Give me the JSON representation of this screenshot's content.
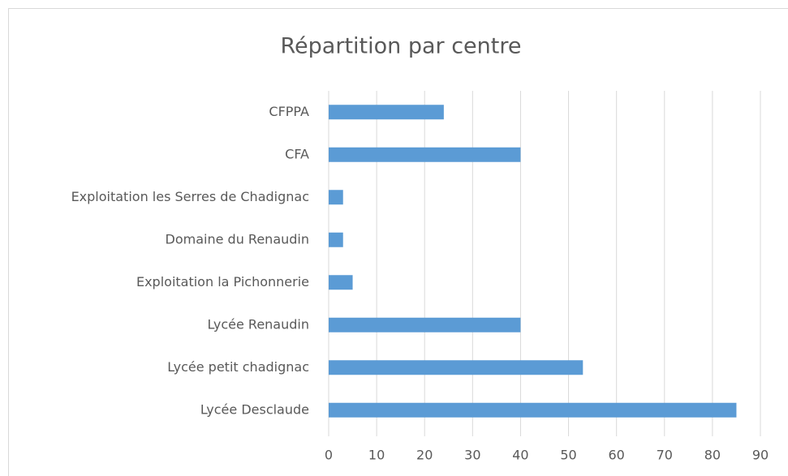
{
  "chart_data": {
    "type": "bar",
    "orientation": "horizontal",
    "title": "Répartition par centre",
    "categories": [
      "CFPPA",
      "CFA",
      "Exploitation les Serres de Chadignac",
      "Domaine du Renaudin",
      "Exploitation la Pichonnerie",
      "Lycée Renaudin",
      "Lycée petit chadignac",
      "Lycée Desclaude"
    ],
    "values": [
      24,
      40,
      3,
      3,
      5,
      40,
      53,
      85
    ],
    "color": "#5b9bd5",
    "xlim": [
      0,
      90
    ],
    "xticks": [
      0,
      10,
      20,
      30,
      40,
      50,
      60,
      70,
      80,
      90
    ],
    "grid": true
  }
}
